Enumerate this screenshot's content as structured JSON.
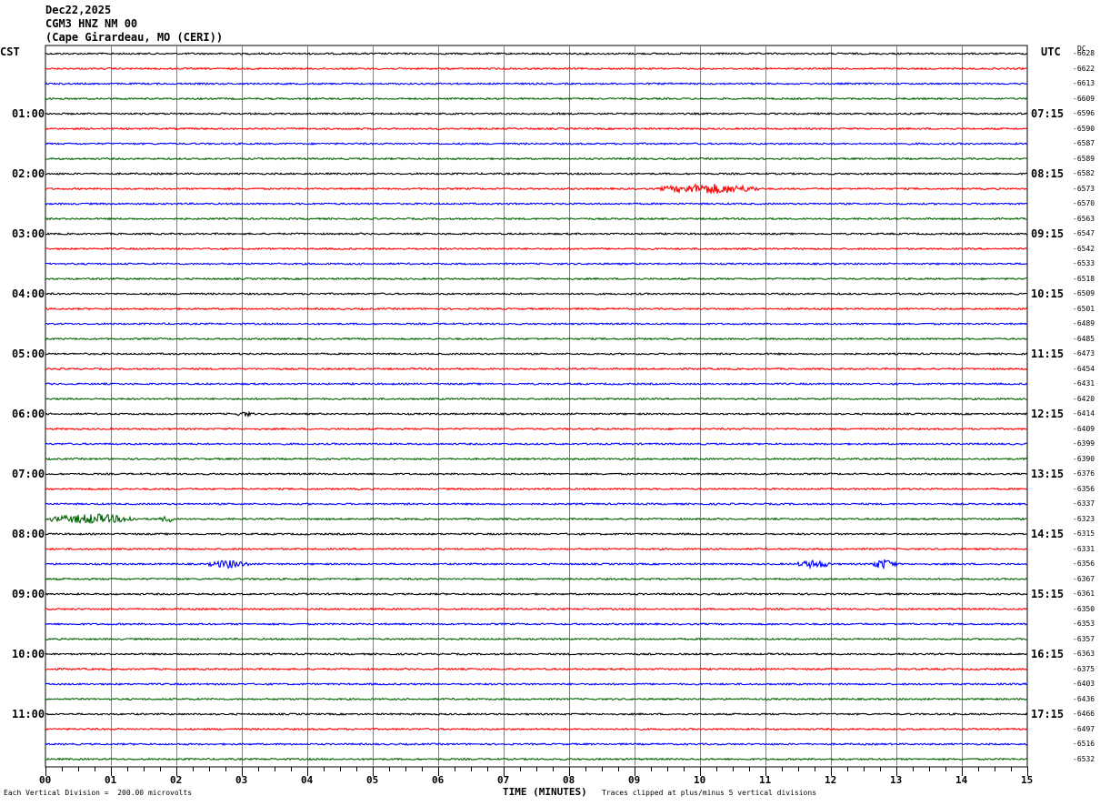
{
  "header": {
    "date": "Dec22,2025",
    "station": "CGM3 HNZ NM 00",
    "location": "(Cape Girardeau, MO (CERI))"
  },
  "left_tz": "CST",
  "right_tz": "UTC",
  "dc_label": "DC",
  "footer": {
    "scale": "Each Vertical Division =  200.00 microvolts",
    "xlabel": "TIME (MINUTES)",
    "clip": "Traces clipped at plus/minus 5 vertical divisions"
  },
  "chart_data": {
    "type": "line",
    "title": "CGM3 HNZ NM 00",
    "xlabel": "TIME (MINUTES)",
    "xlim": [
      0,
      15
    ],
    "x_ticks": [
      "00",
      "01",
      "02",
      "03",
      "04",
      "05",
      "06",
      "07",
      "08",
      "09",
      "10",
      "11",
      "12",
      "13",
      "14",
      "15"
    ],
    "trace_colors": [
      "#000000",
      "#ff0000",
      "#0000ff",
      "#006400"
    ],
    "hour_labels_cst": [
      "01:00",
      "02:00",
      "03:00",
      "04:00",
      "05:00",
      "06:00",
      "07:00",
      "08:00",
      "09:00",
      "10:00",
      "11:00"
    ],
    "hour_labels_utc": [
      "07:15",
      "08:15",
      "09:15",
      "10:15",
      "11:15",
      "12:15",
      "13:15",
      "14:15",
      "15:15",
      "16:15",
      "17:15"
    ],
    "dc_offsets": [
      -6628,
      -6622,
      -6613,
      -6609,
      -6596,
      -6590,
      -6587,
      -6589,
      -6582,
      -6573,
      -6570,
      -6563,
      -6547,
      -6542,
      -6533,
      -6518,
      -6509,
      -6501,
      -6489,
      -6485,
      -6473,
      -6454,
      -6431,
      -6420,
      -6414,
      -6409,
      -6399,
      -6390,
      -6376,
      -6356,
      -6337,
      -6323,
      -6315,
      -6331,
      -6356,
      -6367,
      -6361,
      -6350,
      -6353,
      -6357,
      -6363,
      -6375,
      -6403,
      -6436,
      -6466,
      -6497,
      -6516,
      -6532
    ],
    "events": [
      {
        "trace": 9,
        "start": 9.4,
        "end": 10.9,
        "amp": 6
      },
      {
        "trace": 31,
        "start": 0.05,
        "end": 1.4,
        "amp": 6
      },
      {
        "trace": 31,
        "start": 1.75,
        "end": 2.0,
        "amp": 4
      },
      {
        "trace": 34,
        "start": 2.5,
        "end": 3.1,
        "amp": 5
      },
      {
        "trace": 34,
        "start": 11.5,
        "end": 12.0,
        "amp": 5
      },
      {
        "trace": 34,
        "start": 12.6,
        "end": 13.0,
        "amp": 6
      },
      {
        "trace": 24,
        "start": 2.9,
        "end": 3.2,
        "amp": 3
      }
    ]
  }
}
